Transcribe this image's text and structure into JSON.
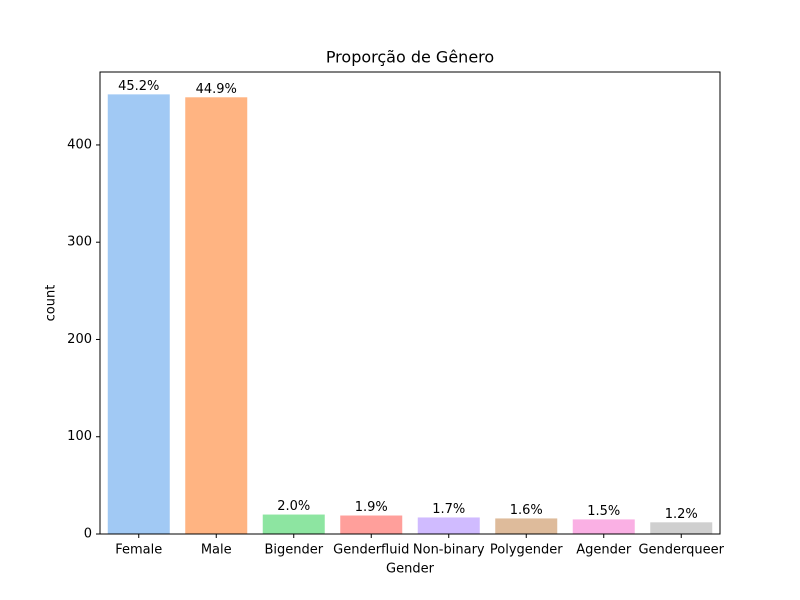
{
  "chart_data": {
    "type": "bar",
    "title": "Proporção de Gênero",
    "x_label": "Gender",
    "y_label": "count",
    "categories": [
      "Female",
      "Male",
      "Bigender",
      "Genderfluid",
      "Non-binary",
      "Polygender",
      "Agender",
      "Genderqueer"
    ],
    "values": [
      452,
      449,
      20,
      19,
      17,
      16,
      15,
      12
    ],
    "value_labels": [
      "45.2%",
      "44.9%",
      "2.0%",
      "1.9%",
      "1.7%",
      "1.6%",
      "1.5%",
      "1.2%"
    ],
    "colors": [
      "#a1c9f4",
      "#ffb482",
      "#8de5a1",
      "#ff9f9b",
      "#d0bbff",
      "#debb9b",
      "#fab0e4",
      "#cfcfcf"
    ],
    "ylim": [
      0,
      475
    ],
    "yticks": [
      0,
      100,
      200,
      300,
      400
    ]
  }
}
